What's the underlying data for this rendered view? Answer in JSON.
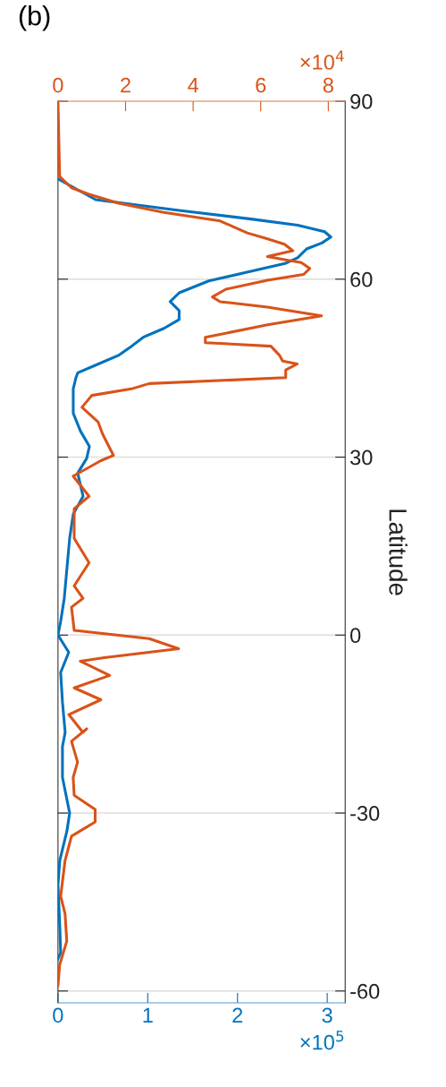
{
  "chart_data": {
    "type": "line",
    "title": "(b)",
    "xlabel": "×10$^{5}$",
    "x2label": "×10$^{4}$",
    "ylabel": "Latitude",
    "xlim": [
      0,
      3.2
    ],
    "xticks": [
      0,
      1,
      2,
      3
    ],
    "x2lim": [
      0,
      8.5
    ],
    "x2ticks": [
      0,
      2,
      4,
      6,
      8
    ],
    "ylim": [
      -62,
      90
    ],
    "yticks": [
      -60,
      -30,
      0,
      30,
      60,
      90
    ],
    "grid": "y",
    "line_style": "solid",
    "marker": "none",
    "series": [
      {
        "color": "#0072bd",
        "x": [
          0,
          0.42,
          1.35,
          2.17,
          2.67,
          2.97,
          3.04,
          2.94,
          2.77,
          2.67,
          2.54,
          2.17,
          1.68,
          1.35,
          1.25,
          1.35,
          1.35,
          1.18,
          0.95,
          0.82,
          0.68,
          0.45,
          0.22,
          0.2,
          0.17,
          0.17,
          0.25,
          0.35,
          0.32,
          0.22,
          0.25,
          0.28,
          0.17,
          0.13,
          0.1,
          0.07,
          0.03,
          0,
          0.12,
          0.03,
          0.05,
          0.08,
          0.05,
          0.05,
          0.13,
          0.1,
          0.02,
          0,
          0.02,
          0.03,
          0
        ],
        "values": [
          76.9,
          73.4,
          71.6,
          70.1,
          69.1,
          68.0,
          67.1,
          66.1,
          65.1,
          63.6,
          62.7,
          61.4,
          59.7,
          57.7,
          56.2,
          54.7,
          53.2,
          51.7,
          50.2,
          48.7,
          47.2,
          45.7,
          44.2,
          43.4,
          41.5,
          37.4,
          34.4,
          31.8,
          29.8,
          27.3,
          25.3,
          23.4,
          20.4,
          16.3,
          11.3,
          6.2,
          2.3,
          0,
          -2.9,
          -6.3,
          -11.3,
          -16.4,
          -18.8,
          -24.0,
          -30.0,
          -33.0,
          -38.0,
          -42.1,
          -49.0,
          -53.5,
          -54.6
        ]
      },
      {
        "color": "#d95319",
        "axis": "x2",
        "x": [
          0,
          0.05,
          0.4,
          0.92,
          1.8,
          3.1,
          4.8,
          5.6,
          6.2,
          6.7,
          6.95,
          6.2,
          6.7,
          7.2,
          7.45,
          7.27,
          6.2,
          4.97,
          4.57,
          4.8,
          6.2,
          7.8,
          6.2,
          4.36,
          4.36,
          6.3,
          6.55,
          6.65,
          7.08,
          6.74,
          6.74,
          2.7,
          2.17,
          1.0,
          0.71,
          1.19,
          1.32,
          1.64,
          1.27,
          0.45,
          0.92,
          0.48,
          0.48,
          0.92,
          0.48,
          0.74,
          0.4,
          0.48,
          2.7,
          3.57,
          1.37,
          0.66,
          1.53,
          0.48,
          1.27,
          0.32,
          0.74,
          0.85,
          0.4,
          0.58,
          0.45,
          0.48,
          1.1,
          1.1,
          0.4,
          0.21,
          0.08,
          0.21,
          0.26,
          0.05,
          0
        ],
        "values": [
          90,
          77.3,
          75.4,
          74.3,
          72.8,
          71.3,
          69.8,
          67.8,
          66.8,
          65.9,
          64.8,
          63.8,
          63.3,
          62.8,
          61.8,
          60.8,
          59.8,
          58.3,
          57.0,
          56.2,
          55.3,
          53.8,
          52.3,
          50.2,
          49.3,
          48.7,
          47.2,
          46.2,
          45.7,
          44.7,
          43.4,
          42.4,
          41.5,
          40.4,
          38.4,
          35.9,
          33.9,
          30.3,
          29.4,
          26.8,
          23.4,
          21.3,
          16.3,
          12.2,
          8.3,
          6.2,
          4.7,
          0.8,
          -0.6,
          -2.3,
          -3.8,
          -4.4,
          -6.8,
          -8.9,
          -10.9,
          -13.4,
          -16.4,
          -15.8,
          -17.9,
          -21.4,
          -24.0,
          -27.0,
          -29.4,
          -31.5,
          -33.9,
          -38.0,
          -44.0,
          -47.0,
          -51.6,
          -55.6,
          -59.1
        ]
      }
    ]
  }
}
